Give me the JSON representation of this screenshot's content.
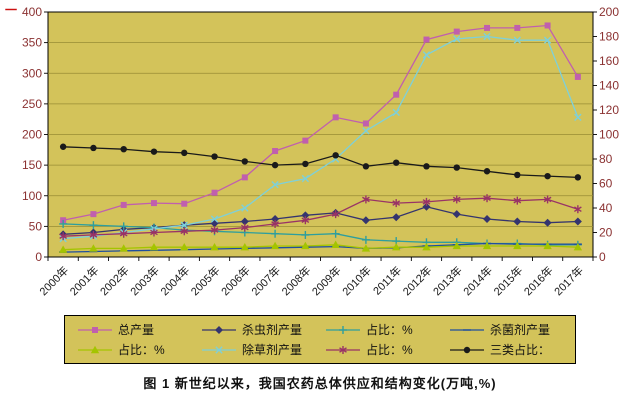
{
  "figure": {
    "caption": "图 1  新世纪以来，我国农药总体供应和结构变化(万吨,%)",
    "stray_mark": "一"
  },
  "colors": {
    "page_bg": "#ffffff",
    "panel_bg": "#d3c35a",
    "grid": "#988c34",
    "border": "#000000",
    "tick_label": "#8b3232",
    "year_label": "#1a1a1a",
    "caption": "#111111",
    "stray": "#cc1111"
  },
  "chart_data": {
    "type": "line",
    "title": "图 1  新世纪以来，我国农药总体供应和结构变化(万吨,%)",
    "x": [
      "2000年",
      "2001年",
      "2002年",
      "2003年",
      "2004年",
      "2005年",
      "2006年",
      "2007年",
      "2008年",
      "2009年",
      "2010年",
      "2011年",
      "2012年",
      "2013年",
      "2014年",
      "2015年",
      "2016年",
      "2017年"
    ],
    "axes": {
      "left": {
        "min": 0,
        "max": 400,
        "step": 50
      },
      "right": {
        "min": 0,
        "max": 200,
        "step": 20
      }
    },
    "grid": true,
    "legend_position": "bottom",
    "series": [
      {
        "name": "总产量",
        "axis": "left",
        "color": "#c05fae",
        "marker": "square",
        "values": [
          60,
          70,
          85,
          88,
          87,
          105,
          130,
          173,
          190,
          228,
          218,
          265,
          355,
          368,
          374,
          374,
          378,
          294
        ]
      },
      {
        "name": "杀虫剂产量",
        "axis": "left",
        "color": "#34346e",
        "marker": "diamond",
        "values": [
          37,
          40,
          45,
          48,
          52,
          55,
          58,
          62,
          68,
          72,
          60,
          65,
          82,
          70,
          62,
          58,
          56,
          58
        ]
      },
      {
        "name": "占比：%",
        "axis": "right",
        "color": "#2e9e9e",
        "marker": "plus",
        "values": [
          27,
          26,
          25,
          24,
          22,
          21,
          20,
          19,
          18,
          19,
          14,
          13,
          12,
          12,
          11,
          11,
          10,
          10
        ]
      },
      {
        "name": "杀菌剂产量",
        "axis": "left",
        "color": "#1f4e9e",
        "marker": "dash",
        "values": [
          8,
          9,
          10,
          11,
          12,
          13,
          14,
          15,
          16,
          17,
          14,
          15,
          18,
          20,
          22,
          21,
          21,
          21
        ]
      },
      {
        "name": "占比：%",
        "axis": "right",
        "color": "#a4c400",
        "marker": "triangle",
        "values": [
          6,
          7,
          7,
          8,
          8,
          8,
          8,
          9,
          9,
          10,
          7,
          8,
          8,
          9,
          9,
          9,
          9,
          8
        ]
      },
      {
        "name": "除草剂产量",
        "axis": "right",
        "color": "#7fd0d8",
        "marker": "x",
        "values": [
          15,
          17,
          20,
          23,
          26,
          31,
          40,
          59,
          64,
          80,
          103,
          118,
          165,
          178,
          180,
          177,
          177,
          114
        ]
      },
      {
        "name": "占比：%",
        "axis": "right",
        "color": "#993366",
        "marker": "asterisk",
        "values": [
          17,
          18,
          19,
          20,
          21,
          22,
          24,
          27,
          30,
          35,
          47,
          44,
          45,
          47,
          48,
          46,
          47,
          39
        ]
      },
      {
        "name": "三类占比：",
        "axis": "right",
        "color": "#1a1a1a",
        "marker": "circle",
        "values": [
          90,
          89,
          88,
          86,
          85,
          82,
          78,
          75,
          76,
          83,
          74,
          77,
          74,
          73,
          70,
          67,
          66,
          65
        ]
      }
    ]
  }
}
